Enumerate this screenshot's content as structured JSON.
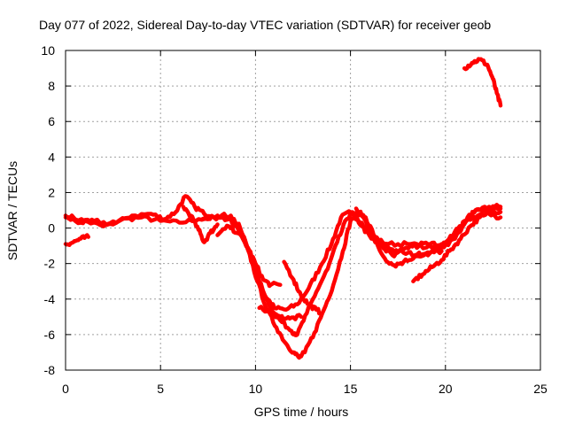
{
  "chart_data": {
    "type": "line",
    "title": "Day 077 of 2022, Sidereal Day-to-day VTEC variation (SDTVAR) for receiver geob",
    "xlabel": "GPS time / hours",
    "ylabel": "SDTVAR / TECUs",
    "xlim": [
      0,
      25
    ],
    "ylim": [
      -8,
      10
    ],
    "xticks": [
      0,
      5,
      10,
      15,
      20,
      25
    ],
    "yticks": [
      -8,
      -6,
      -4,
      -2,
      0,
      2,
      4,
      6,
      8,
      10
    ],
    "grid": true,
    "color": "#ff0000",
    "series": [
      {
        "name": "trace-1",
        "points": [
          [
            0,
            0.7
          ],
          [
            1,
            0.4
          ],
          [
            2,
            0.1
          ],
          [
            3,
            0.5
          ],
          [
            4,
            0.6
          ],
          [
            5,
            0.4
          ],
          [
            6,
            0.3
          ],
          [
            7,
            0.5
          ],
          [
            8,
            0.6
          ],
          [
            8.8,
            0.5
          ],
          [
            9.4,
            -0.5
          ],
          [
            10,
            -2.4
          ],
          [
            10.5,
            -3.8
          ],
          [
            11,
            -4.5
          ],
          [
            11.6,
            -4.6
          ],
          [
            12.2,
            -4.3
          ],
          [
            12.8,
            -3.4
          ],
          [
            13.4,
            -2.2
          ],
          [
            14,
            -0.9
          ],
          [
            14.5,
            0.6
          ],
          [
            15,
            0.9
          ],
          [
            15.6,
            0.3
          ],
          [
            16.2,
            -0.6
          ],
          [
            17,
            -0.9
          ],
          [
            18,
            -0.9
          ],
          [
            19,
            -1.1
          ],
          [
            19.8,
            -1.1
          ],
          [
            20.5,
            -0.6
          ],
          [
            21,
            0.4
          ],
          [
            21.5,
            0.9
          ],
          [
            22,
            1.0
          ],
          [
            22.5,
            1.1
          ],
          [
            22.9,
            1.1
          ]
        ]
      },
      {
        "name": "trace-2",
        "points": [
          [
            0,
            0.6
          ],
          [
            0.8,
            0.3
          ],
          [
            1.5,
            0.4
          ],
          [
            2.5,
            0.2
          ],
          [
            3.5,
            0.7
          ],
          [
            4.5,
            0.8
          ],
          [
            5.2,
            0.5
          ],
          [
            5.8,
            0.9
          ],
          [
            6.3,
            1.8
          ],
          [
            6.8,
            1.2
          ],
          [
            7.3,
            0.8
          ],
          [
            8,
            0.7
          ],
          [
            8.7,
            0.7
          ],
          [
            9.2,
            0.0
          ],
          [
            9.7,
            -1.5
          ],
          [
            10.2,
            -3.0
          ],
          [
            10.7,
            -4.3
          ],
          [
            11.3,
            -5.2
          ],
          [
            11.9,
            -5.8
          ],
          [
            12.2,
            -6.0
          ],
          [
            12.7,
            -4.8
          ],
          [
            13.2,
            -3.6
          ],
          [
            13.8,
            -2.3
          ],
          [
            14.3,
            -0.8
          ],
          [
            14.8,
            0.5
          ],
          [
            15.1,
            0.9
          ],
          [
            15.6,
            0.1
          ],
          [
            16.1,
            -0.6
          ],
          [
            16.6,
            -0.9
          ],
          [
            17.2,
            -1.2
          ],
          [
            17.8,
            -1.4
          ],
          [
            18.5,
            -1.5
          ],
          [
            19.2,
            -1.4
          ],
          [
            19.8,
            -1.0
          ],
          [
            20.5,
            -0.2
          ],
          [
            21,
            0.3
          ],
          [
            21.6,
            0.6
          ],
          [
            22.2,
            0.9
          ],
          [
            22.9,
            0.9
          ]
        ]
      },
      {
        "name": "trace-3",
        "points": [
          [
            7.2,
            0.5
          ],
          [
            7.8,
            0.6
          ],
          [
            8.6,
            0.6
          ],
          [
            9.1,
            -0.1
          ],
          [
            9.6,
            -1.2
          ],
          [
            10.1,
            -3.0
          ],
          [
            10.6,
            -4.6
          ],
          [
            11.1,
            -5.6
          ],
          [
            11.6,
            -6.5
          ],
          [
            12,
            -7.0
          ],
          [
            12.3,
            -7.3
          ],
          [
            12.6,
            -7.0
          ],
          [
            13.1,
            -5.9
          ],
          [
            13.6,
            -4.6
          ],
          [
            14.1,
            -3.2
          ],
          [
            14.6,
            -1.3
          ],
          [
            15,
            0.4
          ],
          [
            15.4,
            0.9
          ],
          [
            15.8,
            0.6
          ],
          [
            16.3,
            -0.5
          ],
          [
            16.8,
            -1.2
          ],
          [
            17.3,
            -1.6
          ],
          [
            17.8,
            -1.2
          ],
          [
            18.5,
            -0.9
          ],
          [
            19.2,
            -0.9
          ],
          [
            19.8,
            -0.9
          ],
          [
            20.5,
            -0.6
          ],
          [
            21.1,
            0.4
          ],
          [
            21.6,
            1.0
          ],
          [
            22.3,
            1.2
          ],
          [
            22.9,
            1.2
          ]
        ]
      },
      {
        "name": "trace-4",
        "points": [
          [
            15.3,
            1.1
          ],
          [
            15.8,
            0.4
          ],
          [
            16.3,
            -0.8
          ],
          [
            16.8,
            -1.7
          ],
          [
            17.3,
            -2.1
          ],
          [
            17.8,
            -1.9
          ],
          [
            18.4,
            -1.6
          ],
          [
            19.2,
            -1.4
          ],
          [
            19.8,
            -1.3
          ]
        ]
      },
      {
        "name": "trace-5",
        "points": [
          [
            8,
            -0.4
          ],
          [
            8.6,
            0.1
          ],
          [
            9.1,
            -0.3
          ],
          [
            9.6,
            -1.1
          ],
          [
            10,
            -2.0
          ],
          [
            10.4,
            -2.9
          ],
          [
            10.8,
            -3.2
          ],
          [
            11.3,
            -3.2
          ]
        ]
      },
      {
        "name": "trace-6",
        "points": [
          [
            6.2,
            1.2
          ],
          [
            6.6,
            0.7
          ],
          [
            7,
            -0.1
          ],
          [
            7.3,
            -0.8
          ],
          [
            7.6,
            -0.3
          ],
          [
            8,
            0.2
          ]
        ]
      },
      {
        "name": "trace-7",
        "points": [
          [
            0,
            -0.9
          ],
          [
            0.4,
            -0.8
          ],
          [
            0.8,
            -0.6
          ],
          [
            1.2,
            -0.5
          ]
        ]
      },
      {
        "name": "trace-8",
        "points": [
          [
            11.5,
            -1.9
          ],
          [
            12,
            -2.9
          ],
          [
            12.4,
            -3.8
          ],
          [
            12.8,
            -4.3
          ],
          [
            13.2,
            -4.6
          ],
          [
            13.5,
            -4.8
          ]
        ]
      },
      {
        "name": "trace-9",
        "points": [
          [
            10.2,
            -4.5
          ],
          [
            10.8,
            -4.8
          ],
          [
            11.3,
            -5.0
          ],
          [
            11.8,
            -5.1
          ],
          [
            12.4,
            -5.0
          ]
        ]
      },
      {
        "name": "trace-10",
        "points": [
          [
            18.3,
            -3.0
          ],
          [
            18.8,
            -2.6
          ],
          [
            19.3,
            -2.2
          ],
          [
            19.8,
            -1.8
          ],
          [
            20.3,
            -1.2
          ],
          [
            20.8,
            -0.6
          ],
          [
            21.3,
            0.1
          ],
          [
            21.8,
            0.6
          ],
          [
            22.3,
            0.8
          ],
          [
            22.9,
            0.6
          ]
        ]
      },
      {
        "name": "trace-11",
        "points": [
          [
            21,
            9.0
          ],
          [
            21.4,
            9.3
          ],
          [
            21.8,
            9.5
          ],
          [
            22.2,
            9.2
          ],
          [
            22.5,
            8.4
          ],
          [
            22.7,
            7.6
          ],
          [
            22.9,
            6.9
          ]
        ]
      }
    ]
  }
}
